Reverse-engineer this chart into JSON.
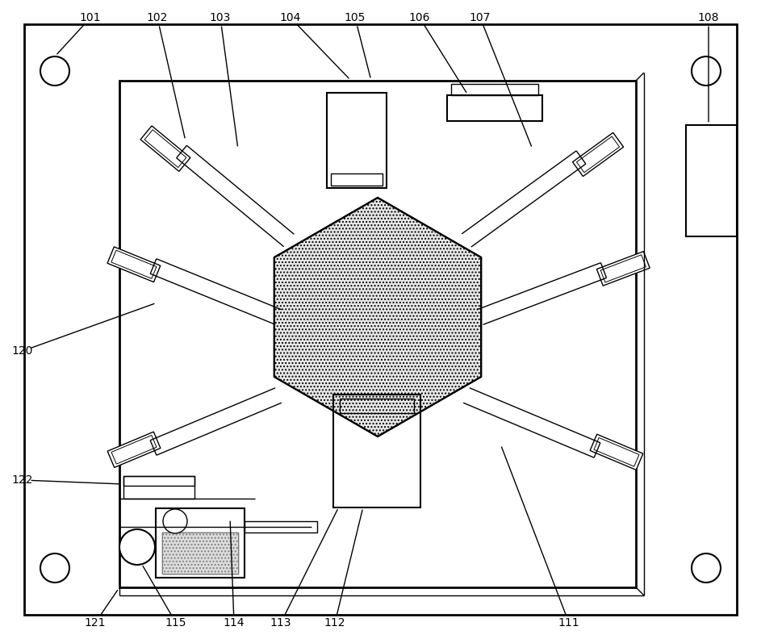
{
  "bg_color": "#ffffff",
  "lw_outer": 2.0,
  "lw_inner": 2.0,
  "lw_med": 1.5,
  "lw_thin": 1.0,
  "fig_w": 9.43,
  "fig_h": 7.92,
  "dpi": 100,
  "label_fs": 10
}
